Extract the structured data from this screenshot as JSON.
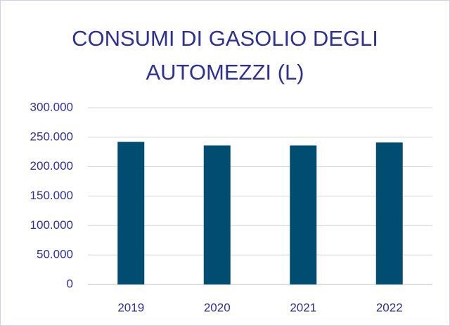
{
  "chart_data": {
    "type": "bar",
    "title": "CONSUMI DI GASOLIO DEGLI AUTOMEZZI (L)",
    "categories": [
      "2019",
      "2020",
      "2021",
      "2022"
    ],
    "values": [
      242000,
      236000,
      236000,
      241000
    ],
    "color": "#004d71",
    "ylim": [
      0,
      300000
    ],
    "yticks": [
      0,
      {
        "value": 50000,
        "label": "50.000"
      },
      {
        "value": 100000,
        "label": "100.000"
      },
      {
        "value": 150000,
        "label": "150.000"
      },
      {
        "value": 200000,
        "label": "200.000"
      },
      {
        "value": 250000,
        "label": "250.000"
      },
      {
        "value": 300000,
        "label": "300.000"
      }
    ],
    "grid": true
  }
}
